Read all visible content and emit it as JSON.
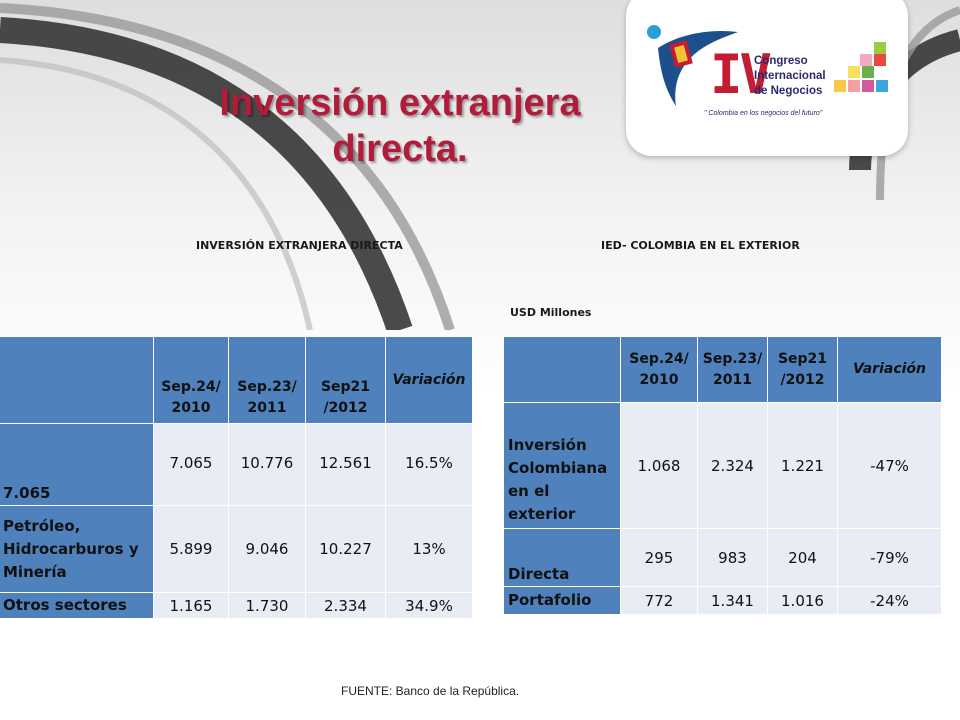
{
  "slide": {
    "title_line1": "Inversión extranjera",
    "title_line2": "directa.",
    "source": "FUENTE: Banco de la República."
  },
  "logo": {
    "roman": "IV",
    "name_line1": "Congreso",
    "name_line2": "Internacional",
    "name_line3": "de Negocios",
    "slogan": "\" Colombia en los negocios del futuro\""
  },
  "left_panel": {
    "heading": "INVERSIÓN EXTRANJERA DIRECTA",
    "table": {
      "header": [
        "",
        "Sep.24/ 2010",
        "Sep.23/ 2011",
        "Sep21 /2012",
        "Variación"
      ],
      "rows": [
        {
          "label": "7.065",
          "values": [
            "7.065",
            "10.776",
            "12.561",
            "16.5%"
          ]
        },
        {
          "label": "Petróleo, Hidrocarburos y Minería",
          "values": [
            "5.899",
            "9.046",
            "10.227",
            "13%"
          ]
        },
        {
          "label": "Otros sectores",
          "values": [
            "1.165",
            "1.730",
            "2.334",
            "34.9%"
          ]
        }
      ]
    }
  },
  "right_panel": {
    "heading": "IED- COLOMBIA  EN EL EXTERIOR",
    "units": "USD Millones",
    "table": {
      "header": [
        "",
        "Sep.24/ 2010",
        "Sep.23/ 2011",
        "Sep21 /2012",
        "Variación"
      ],
      "rows": [
        {
          "label": "Inversión Colombiana en el exterior",
          "values": [
            "1.068",
            "2.324",
            "1.221",
            "-47%"
          ]
        },
        {
          "label": "Directa",
          "values": [
            "295",
            "983",
            "204",
            "-79%"
          ]
        },
        {
          "label": "Portafolio",
          "values": [
            "772",
            "1.341",
            "1.016",
            "-24%"
          ]
        }
      ]
    }
  },
  "colors": {
    "title": "#b01c3a",
    "header_fill": "#4f81bd",
    "cell_fill": "#e8ecf4",
    "logo_red": "#c21d33",
    "logo_navy": "#2a2a6a"
  }
}
